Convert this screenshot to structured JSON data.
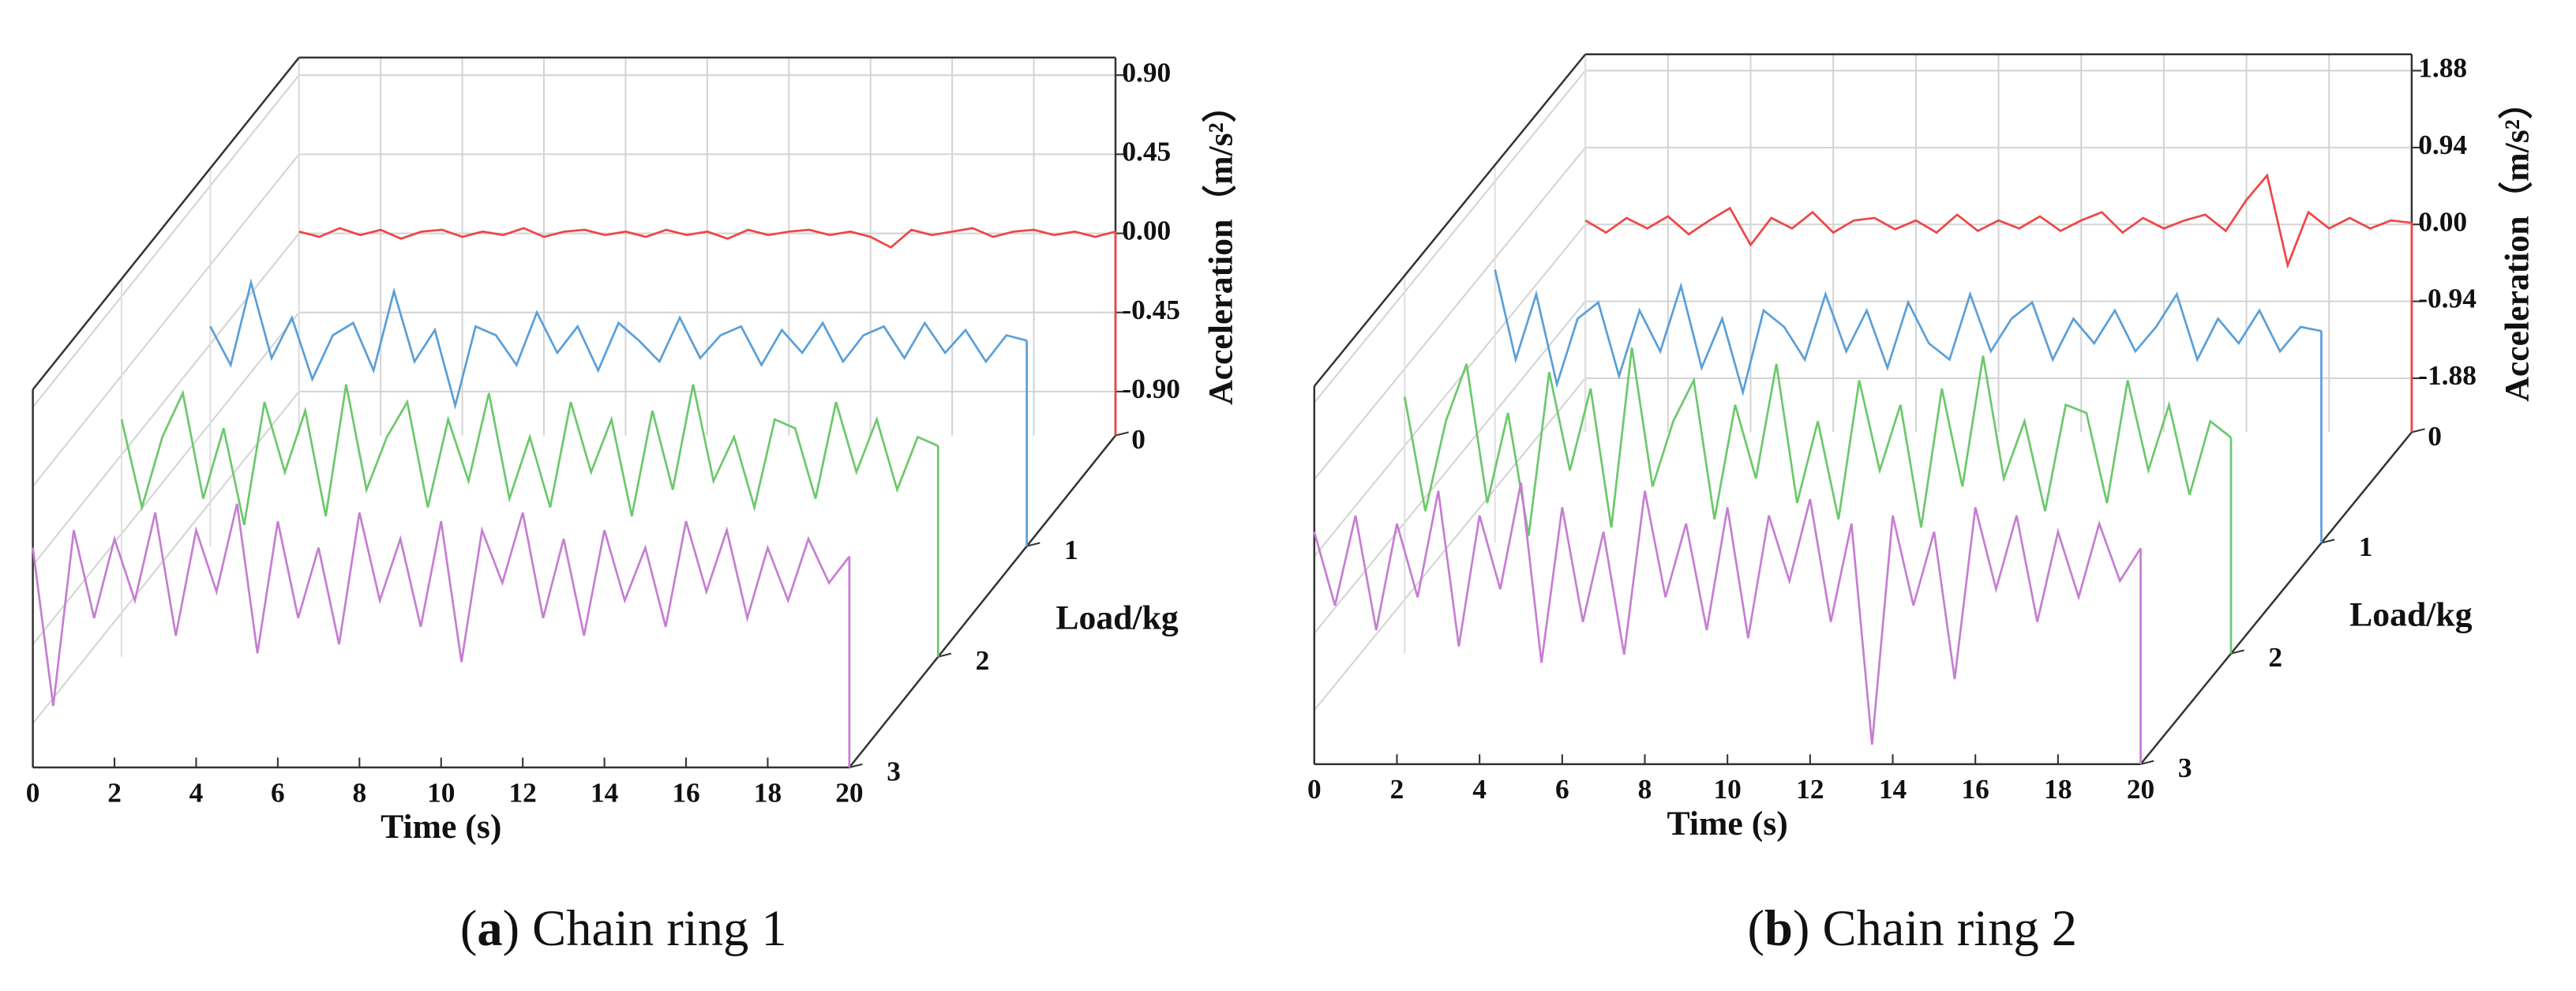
{
  "chart_data": [
    {
      "type": "waterfall",
      "caption": "(a) Chain ring 1",
      "xlabel": "Time (s)",
      "ylabel": "Acceleration（m/s²）",
      "zlabel": "Load/kg",
      "xlim": [
        0,
        20
      ],
      "xticks": [
        0,
        2,
        4,
        6,
        8,
        10,
        12,
        14,
        16,
        18,
        20
      ],
      "ylim": [
        -1.15,
        1.0
      ],
      "yticks": [
        {
          "value": -0.9,
          "label": "-0.90"
        },
        -0.45,
        {
          "value": 0,
          "label": "0.00"
        },
        0.45,
        {
          "value": 0.9,
          "label": "0.90"
        }
      ],
      "zlim": [
        0,
        3
      ],
      "zticks": [
        0,
        1,
        2,
        3
      ],
      "grid": true,
      "x": [
        0,
        0.5,
        1,
        1.5,
        2,
        2.5,
        3,
        3.5,
        4,
        4.5,
        5,
        5.5,
        6,
        6.5,
        7,
        7.5,
        8,
        8.5,
        9,
        9.5,
        10,
        10.5,
        11,
        11.5,
        12,
        12.5,
        13,
        13.5,
        14,
        14.5,
        15,
        15.5,
        16,
        16.5,
        17,
        17.5,
        18,
        18.5,
        19,
        19.5,
        20
      ],
      "series": [
        {
          "color": "#f04545",
          "z": 0,
          "values": [
            0.01,
            -0.02,
            0.03,
            -0.01,
            0.02,
            -0.03,
            0.01,
            0.02,
            -0.02,
            0.01,
            -0.01,
            0.03,
            -0.02,
            0.01,
            0.02,
            -0.01,
            0.01,
            -0.02,
            0.02,
            -0.01,
            0.01,
            -0.03,
            0.02,
            -0.01,
            0.01,
            0.02,
            -0.01,
            0.01,
            -0.02,
            -0.08,
            0.02,
            -0.01,
            0.01,
            0.03,
            -0.02,
            0.01,
            0.02,
            -0.01,
            0.01,
            -0.02,
            0.01
          ]
        },
        {
          "color": "#5a9fd8",
          "z": 1,
          "values": [
            0.1,
            -0.12,
            0.35,
            -0.08,
            0.15,
            -0.2,
            0.05,
            0.12,
            -0.15,
            0.3,
            -0.1,
            0.08,
            -0.35,
            0.1,
            0.05,
            -0.12,
            0.18,
            -0.05,
            0.1,
            -0.15,
            0.12,
            0.02,
            -0.1,
            0.15,
            -0.08,
            0.05,
            0.1,
            -0.12,
            0.08,
            -0.05,
            0.12,
            -0.1,
            0.05,
            0.1,
            -0.08,
            0.12,
            -0.05,
            0.08,
            -0.1,
            0.05,
            0.02
          ]
        },
        {
          "color": "#6cc86c",
          "z": 2,
          "values": [
            0.2,
            -0.3,
            0.1,
            0.35,
            -0.25,
            0.15,
            -0.4,
            0.3,
            -0.1,
            0.25,
            -0.35,
            0.4,
            -0.2,
            0.1,
            0.3,
            -0.3,
            0.2,
            -0.15,
            0.35,
            -0.25,
            0.1,
            -0.3,
            0.3,
            -0.1,
            0.2,
            -0.35,
            0.25,
            -0.2,
            0.4,
            -0.15,
            0.1,
            -0.3,
            0.2,
            0.15,
            -0.25,
            0.3,
            -0.1,
            0.2,
            -0.2,
            0.1,
            0.05
          ]
        },
        {
          "color": "#c67ed2",
          "z": 3,
          "values": [
            0.1,
            -0.8,
            0.2,
            -0.3,
            0.15,
            -0.2,
            0.3,
            -0.4,
            0.2,
            -0.15,
            0.35,
            -0.5,
            0.25,
            -0.3,
            0.1,
            -0.45,
            0.3,
            -0.2,
            0.15,
            -0.35,
            0.25,
            -0.55,
            0.2,
            -0.1,
            0.3,
            -0.3,
            0.15,
            -0.4,
            0.2,
            -0.2,
            0.1,
            -0.35,
            0.25,
            -0.15,
            0.2,
            -0.3,
            0.1,
            -0.2,
            0.15,
            -0.1,
            0.05
          ]
        }
      ]
    },
    {
      "type": "waterfall",
      "caption": "(b) Chain ring 2",
      "xlabel": "Time (s)",
      "ylabel": "Acceleration（m/s²）",
      "zlabel": "Load/kg",
      "xlim": [
        0,
        20
      ],
      "xticks": [
        0,
        2,
        4,
        6,
        8,
        10,
        12,
        14,
        16,
        18,
        20
      ],
      "ylim": [
        -2.54,
        2.08
      ],
      "yticks": [
        -1.88,
        -0.94,
        {
          "value": 0,
          "label": "0.00"
        },
        0.94,
        1.88
      ],
      "zlim": [
        0,
        3
      ],
      "zticks": [
        0,
        1,
        2,
        3
      ],
      "grid": true,
      "x": [
        0,
        0.5,
        1,
        1.5,
        2,
        2.5,
        3,
        3.5,
        4,
        4.5,
        5,
        5.5,
        6,
        6.5,
        7,
        7.5,
        8,
        8.5,
        9,
        9.5,
        10,
        10.5,
        11,
        11.5,
        12,
        12.5,
        13,
        13.5,
        14,
        14.5,
        15,
        15.5,
        16,
        16.5,
        17,
        17.5,
        18,
        18.5,
        19,
        19.5,
        20
      ],
      "series": [
        {
          "color": "#f04545",
          "z": 0,
          "values": [
            0.05,
            -0.1,
            0.08,
            -0.05,
            0.1,
            -0.12,
            0.05,
            0.2,
            -0.25,
            0.08,
            -0.05,
            0.15,
            -0.1,
            0.05,
            0.08,
            -0.06,
            0.05,
            -0.1,
            0.12,
            -0.08,
            0.05,
            -0.05,
            0.1,
            -0.08,
            0.05,
            0.15,
            -0.1,
            0.08,
            -0.05,
            0.05,
            0.12,
            -0.08,
            0.3,
            0.6,
            -0.5,
            0.15,
            -0.05,
            0.08,
            -0.05,
            0.05,
            0.02
          ]
        },
        {
          "color": "#5a9fd8",
          "z": 1,
          "values": [
            0.8,
            -0.3,
            0.5,
            -0.6,
            0.2,
            0.4,
            -0.5,
            0.3,
            -0.2,
            0.6,
            -0.4,
            0.2,
            -0.7,
            0.3,
            0.1,
            -0.3,
            0.5,
            -0.2,
            0.3,
            -0.4,
            0.4,
            -0.1,
            -0.3,
            0.5,
            -0.2,
            0.2,
            0.4,
            -0.3,
            0.2,
            -0.1,
            0.3,
            -0.2,
            0.1,
            0.5,
            -0.3,
            0.2,
            -0.1,
            0.3,
            -0.2,
            0.1,
            0.05
          ]
        },
        {
          "color": "#6cc86c",
          "z": 2,
          "values": [
            0.6,
            -0.8,
            0.3,
            1.0,
            -0.7,
            0.4,
            -1.1,
            0.9,
            -0.3,
            0.7,
            -1.0,
            1.2,
            -0.5,
            0.3,
            0.8,
            -0.9,
            0.5,
            -0.4,
            1.0,
            -0.7,
            0.3,
            -0.9,
            0.8,
            -0.3,
            0.5,
            -1.0,
            0.7,
            -0.5,
            1.1,
            -0.4,
            0.3,
            -0.8,
            0.5,
            0.4,
            -0.7,
            0.8,
            -0.3,
            0.5,
            -0.6,
            0.3,
            0.1
          ]
        },
        {
          "color": "#c67ed2",
          "z": 3,
          "values": [
            0.3,
            -0.6,
            0.5,
            -0.9,
            0.4,
            -0.5,
            0.8,
            -1.1,
            0.5,
            -0.4,
            0.9,
            -1.3,
            0.6,
            -0.8,
            0.3,
            -1.2,
            0.8,
            -0.5,
            0.4,
            -0.9,
            0.6,
            -1.0,
            0.5,
            -0.3,
            0.7,
            -0.8,
            0.4,
            -2.3,
            0.5,
            -0.6,
            0.3,
            -1.5,
            0.6,
            -0.4,
            0.5,
            -0.8,
            0.3,
            -0.5,
            0.4,
            -0.3,
            0.1
          ]
        }
      ]
    }
  ]
}
